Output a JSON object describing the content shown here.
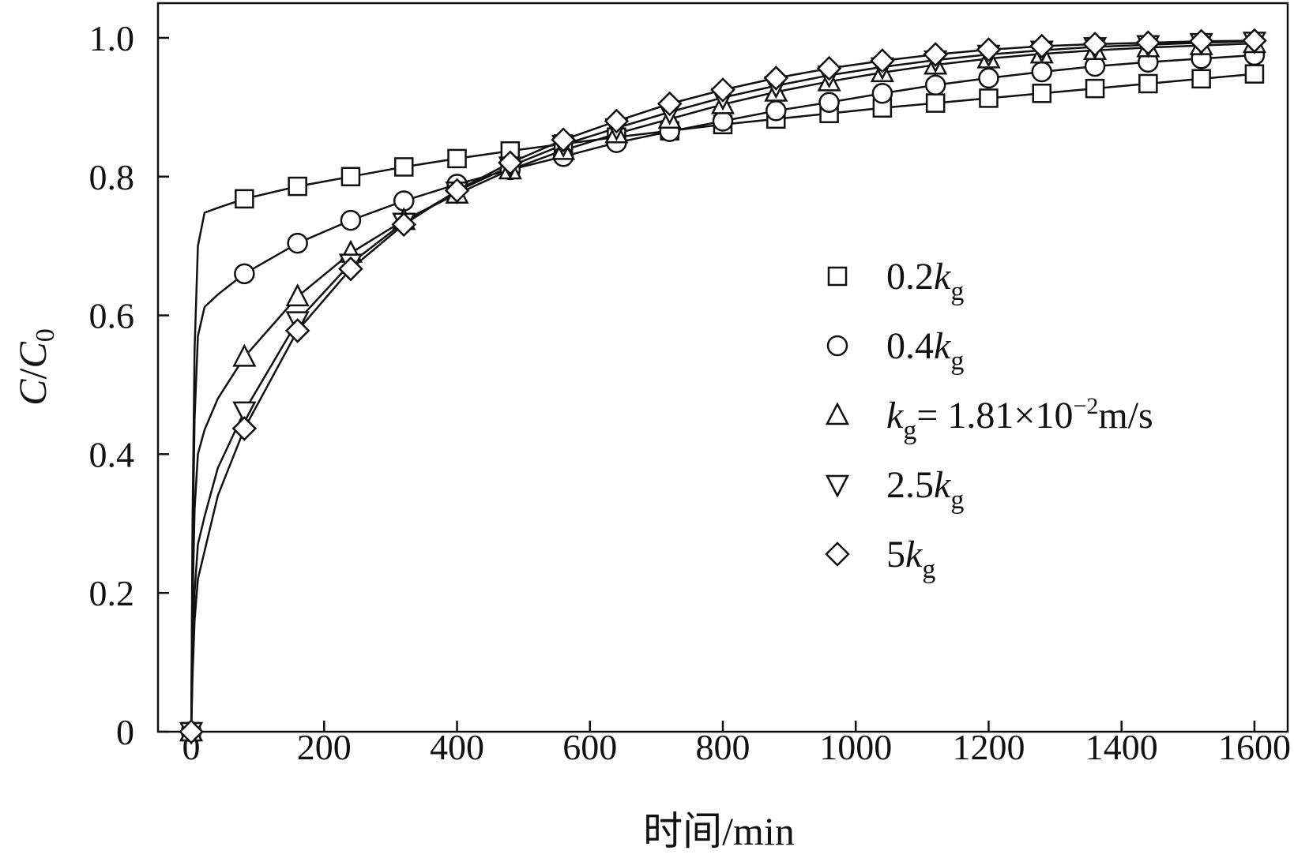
{
  "chart_data": {
    "type": "line",
    "title": "",
    "xlabel": "时间/min",
    "ylabel": {
      "main": "C",
      "sep": "/",
      "main2": "C",
      "sub": "0"
    },
    "xlim": [
      -50,
      1650
    ],
    "ylim": [
      0,
      1.05
    ],
    "x_ticks": [
      0,
      200,
      400,
      600,
      800,
      1000,
      1200,
      1400,
      1600
    ],
    "y_ticks": [
      0,
      0.2,
      0.4,
      0.6,
      0.8,
      1.0
    ],
    "x_tick_labels": [
      "0",
      "200",
      "400",
      "600",
      "800",
      "1000",
      "1200",
      "1400",
      "1600"
    ],
    "y_tick_labels": [
      "0",
      "0.2",
      "0.4",
      "0.6",
      "0.8",
      "1.0"
    ],
    "grid": false,
    "legend_position": "center-right",
    "series": [
      {
        "legend": {
          "pre": "0.2",
          "k": "k",
          "sub": "g",
          "post": ""
        },
        "marker": "square",
        "x": [
          0,
          80,
          160,
          240,
          320,
          400,
          480,
          560,
          640,
          720,
          800,
          880,
          960,
          1040,
          1120,
          1200,
          1280,
          1360,
          1440,
          1520,
          1600
        ],
        "values": [
          0,
          0.768,
          0.786,
          0.8,
          0.814,
          0.826,
          0.837,
          0.847,
          0.857,
          0.866,
          0.875,
          0.883,
          0.891,
          0.899,
          0.906,
          0.913,
          0.92,
          0.927,
          0.934,
          0.941,
          0.948
        ],
        "curve_x": [
          0,
          2,
          5,
          10,
          20,
          40,
          80,
          160,
          240,
          320,
          400,
          480,
          560,
          640,
          720,
          800,
          880,
          960,
          1040,
          1120,
          1200,
          1280,
          1360,
          1440,
          1520,
          1600
        ],
        "curve_y": [
          0,
          0.3,
          0.55,
          0.7,
          0.748,
          0.755,
          0.768,
          0.786,
          0.8,
          0.814,
          0.826,
          0.837,
          0.847,
          0.857,
          0.866,
          0.875,
          0.883,
          0.891,
          0.899,
          0.906,
          0.913,
          0.92,
          0.927,
          0.934,
          0.941,
          0.948
        ]
      },
      {
        "legend": {
          "pre": "0.4",
          "k": "k",
          "sub": "g",
          "post": ""
        },
        "marker": "circle",
        "x": [
          0,
          80,
          160,
          240,
          320,
          400,
          480,
          560,
          640,
          720,
          800,
          880,
          960,
          1040,
          1120,
          1200,
          1280,
          1360,
          1440,
          1520,
          1600
        ],
        "values": [
          0,
          0.66,
          0.704,
          0.737,
          0.765,
          0.789,
          0.81,
          0.829,
          0.849,
          0.865,
          0.88,
          0.895,
          0.907,
          0.92,
          0.932,
          0.942,
          0.951,
          0.959,
          0.965,
          0.97,
          0.975
        ],
        "curve_x": [
          0,
          2,
          5,
          10,
          20,
          40,
          80,
          160,
          240,
          320,
          400,
          480,
          560,
          640,
          720,
          800,
          880,
          960,
          1040,
          1120,
          1200,
          1280,
          1360,
          1440,
          1520,
          1600
        ],
        "curve_y": [
          0,
          0.25,
          0.45,
          0.57,
          0.612,
          0.63,
          0.66,
          0.704,
          0.737,
          0.765,
          0.789,
          0.81,
          0.829,
          0.849,
          0.865,
          0.88,
          0.895,
          0.907,
          0.92,
          0.932,
          0.942,
          0.951,
          0.959,
          0.965,
          0.97,
          0.975
        ]
      },
      {
        "legend": {
          "pre": "",
          "k": "k",
          "sub": "g",
          "post": "= 1.81×10",
          "sup": "−2",
          "unit": "m/s"
        },
        "marker": "triangle-up",
        "x": [
          0,
          80,
          160,
          240,
          320,
          400,
          480,
          560,
          640,
          720,
          800,
          880,
          960,
          1040,
          1120,
          1200,
          1280,
          1360,
          1440,
          1520,
          1600
        ],
        "values": [
          0,
          0.54,
          0.627,
          0.69,
          0.737,
          0.775,
          0.81,
          0.838,
          0.862,
          0.883,
          0.904,
          0.922,
          0.937,
          0.95,
          0.961,
          0.97,
          0.977,
          0.982,
          0.986,
          0.989,
          0.992
        ],
        "curve_x": [
          0,
          2,
          5,
          10,
          20,
          40,
          80,
          160,
          240,
          320,
          400,
          480,
          560,
          640,
          720,
          800,
          880,
          960,
          1040,
          1120,
          1200,
          1280,
          1360,
          1440,
          1520,
          1600
        ],
        "curve_y": [
          0,
          0.18,
          0.32,
          0.4,
          0.435,
          0.48,
          0.54,
          0.627,
          0.69,
          0.737,
          0.775,
          0.81,
          0.838,
          0.862,
          0.883,
          0.904,
          0.922,
          0.937,
          0.95,
          0.961,
          0.97,
          0.977,
          0.982,
          0.986,
          0.989,
          0.992
        ]
      },
      {
        "legend": {
          "pre": "2.5",
          "k": "k",
          "sub": "g",
          "post": ""
        },
        "marker": "triangle-down",
        "x": [
          0,
          80,
          160,
          240,
          320,
          400,
          480,
          560,
          640,
          720,
          800,
          880,
          960,
          1040,
          1120,
          1200,
          1280,
          1360,
          1440,
          1520,
          1600
        ],
        "values": [
          0,
          0.462,
          0.592,
          0.675,
          0.734,
          0.779,
          0.815,
          0.846,
          0.87,
          0.893,
          0.914,
          0.931,
          0.946,
          0.958,
          0.968,
          0.976,
          0.982,
          0.987,
          0.99,
          0.993,
          0.995
        ],
        "curve_x": [
          0,
          2,
          5,
          10,
          20,
          40,
          80,
          160,
          240,
          320,
          400,
          480,
          560,
          640,
          720,
          800,
          880,
          960,
          1040,
          1120,
          1200,
          1280,
          1360,
          1440,
          1520,
          1600
        ],
        "curve_y": [
          0,
          0.1,
          0.2,
          0.27,
          0.31,
          0.38,
          0.462,
          0.592,
          0.675,
          0.734,
          0.779,
          0.815,
          0.846,
          0.87,
          0.893,
          0.914,
          0.931,
          0.946,
          0.958,
          0.968,
          0.976,
          0.982,
          0.987,
          0.99,
          0.993,
          0.995
        ]
      },
      {
        "legend": {
          "pre": "5",
          "k": "k",
          "sub": "g",
          "post": ""
        },
        "marker": "diamond",
        "x": [
          0,
          80,
          160,
          240,
          320,
          400,
          480,
          560,
          640,
          720,
          800,
          880,
          960,
          1040,
          1120,
          1200,
          1280,
          1360,
          1440,
          1520,
          1600
        ],
        "values": [
          0,
          0.437,
          0.578,
          0.667,
          0.731,
          0.78,
          0.82,
          0.853,
          0.88,
          0.905,
          0.925,
          0.942,
          0.956,
          0.967,
          0.976,
          0.983,
          0.988,
          0.991,
          0.993,
          0.995,
          0.996
        ],
        "curve_x": [
          0,
          2,
          5,
          10,
          20,
          40,
          80,
          160,
          240,
          320,
          400,
          480,
          560,
          640,
          720,
          800,
          880,
          960,
          1040,
          1120,
          1200,
          1280,
          1360,
          1440,
          1520,
          1600
        ],
        "curve_y": [
          0,
          0.08,
          0.16,
          0.22,
          0.26,
          0.34,
          0.437,
          0.578,
          0.667,
          0.731,
          0.78,
          0.82,
          0.853,
          0.88,
          0.905,
          0.925,
          0.942,
          0.956,
          0.967,
          0.976,
          0.983,
          0.988,
          0.991,
          0.993,
          0.995,
          0.996
        ]
      }
    ]
  }
}
